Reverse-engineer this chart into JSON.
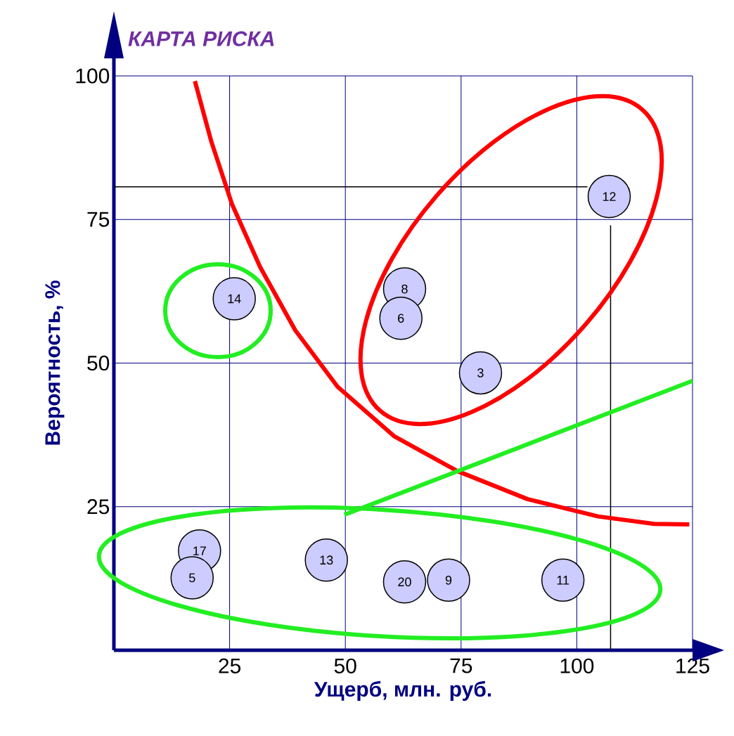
{
  "chart_data": {
    "type": "scatter",
    "title": "КАРТА РИСКА",
    "xlabel": "Ущерб, млн. руб.",
    "ylabel": "Вероятность, %",
    "xlim": [
      0,
      125
    ],
    "ylim": [
      0,
      100
    ],
    "xticks": [
      25,
      50,
      75,
      100,
      125
    ],
    "yticks": [
      25,
      50,
      75,
      100
    ],
    "grid": true,
    "series": [
      {
        "type": "line",
        "color": "#000000",
        "x": [
          0,
          102.3
        ],
        "values": [
          80.7,
          80.7
        ]
      },
      {
        "type": "line",
        "color": "#000000",
        "x": [
          107.3,
          107.3
        ],
        "values": [
          74,
          0
        ]
      },
      {
        "type": "line",
        "color": "#ff0000",
        "x": [
          17.5,
          21,
          25.5,
          31.6,
          39.2,
          48.3,
          60.5,
          74.2,
          89.4,
          104.6,
          116.7,
          124.3
        ],
        "values": [
          99.1,
          88.7,
          77.7,
          66.7,
          55.7,
          45.9,
          37.3,
          31.2,
          26.3,
          23.3,
          22,
          21.9
        ]
      },
      {
        "type": "line",
        "color": "#22ee22",
        "x": [
          49.8,
          125
        ],
        "values": [
          23.6,
          46.9
        ]
      },
      {
        "color": "#ccccff",
        "marker": "circle",
        "x": [
          26,
          62.8,
          62,
          79.2,
          107,
          18.5,
          16.9,
          45.9,
          62.8,
          72.3,
          97
        ],
        "values": [
          61.2,
          62.9,
          57.8,
          48.3,
          79,
          17.3,
          12.6,
          15.7,
          11.9,
          12.2,
          12.2
        ]
      }
    ],
    "annotations": [
      {
        "text": "14",
        "x": 26,
        "y": 61.2
      },
      {
        "text": "8",
        "x": 62.8,
        "y": 62.9
      },
      {
        "text": "6",
        "x": 62,
        "y": 57.8
      },
      {
        "text": "3",
        "x": 79.2,
        "y": 48.3
      },
      {
        "text": "12",
        "x": 107,
        "y": 79
      },
      {
        "text": "17",
        "x": 18.5,
        "y": 17.3
      },
      {
        "text": "5",
        "x": 16.9,
        "y": 12.6
      },
      {
        "text": "13",
        "x": 45.9,
        "y": 15.7
      },
      {
        "text": "20",
        "x": 62.8,
        "y": 11.9
      },
      {
        "text": "9",
        "x": 72.3,
        "y": 12.2
      },
      {
        "text": "11",
        "x": 97,
        "y": 12.2
      }
    ]
  }
}
